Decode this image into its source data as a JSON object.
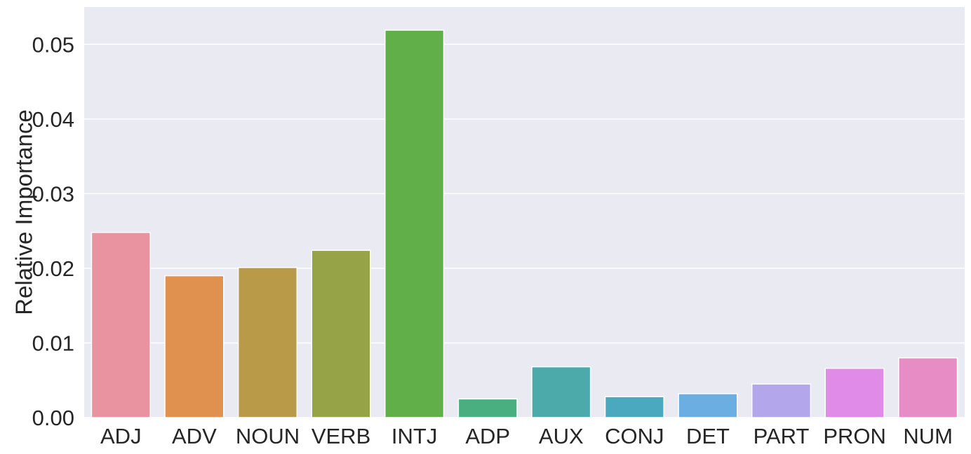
{
  "chart_data": {
    "type": "bar",
    "categories": [
      "ADJ",
      "ADV",
      "NOUN",
      "VERB",
      "INTJ",
      "ADP",
      "AUX",
      "CONJ",
      "DET",
      "PART",
      "PRON",
      "NUM"
    ],
    "values": [
      0.0248,
      0.019,
      0.0201,
      0.0224,
      0.0519,
      0.0025,
      0.0068,
      0.0028,
      0.0032,
      0.0045,
      0.0066,
      0.008
    ],
    "colors": [
      "#e8939f",
      "#e0904f",
      "#b89a48",
      "#97a347",
      "#61af49",
      "#4aaf80",
      "#4cabaa",
      "#4ba9bf",
      "#6aaee2",
      "#b4a6ea",
      "#e08be8",
      "#e88cc5"
    ],
    "title": "",
    "xlabel": "",
    "ylabel": "Relative Importance",
    "ylim": [
      0,
      0.055
    ],
    "yticks": [
      0.0,
      0.01,
      0.02,
      0.03,
      0.04,
      0.05
    ],
    "ytick_labels": [
      "0.00",
      "0.01",
      "0.02",
      "0.03",
      "0.04",
      "0.05"
    ],
    "grid": true,
    "background": "#eaeaf2",
    "legend": "none"
  }
}
